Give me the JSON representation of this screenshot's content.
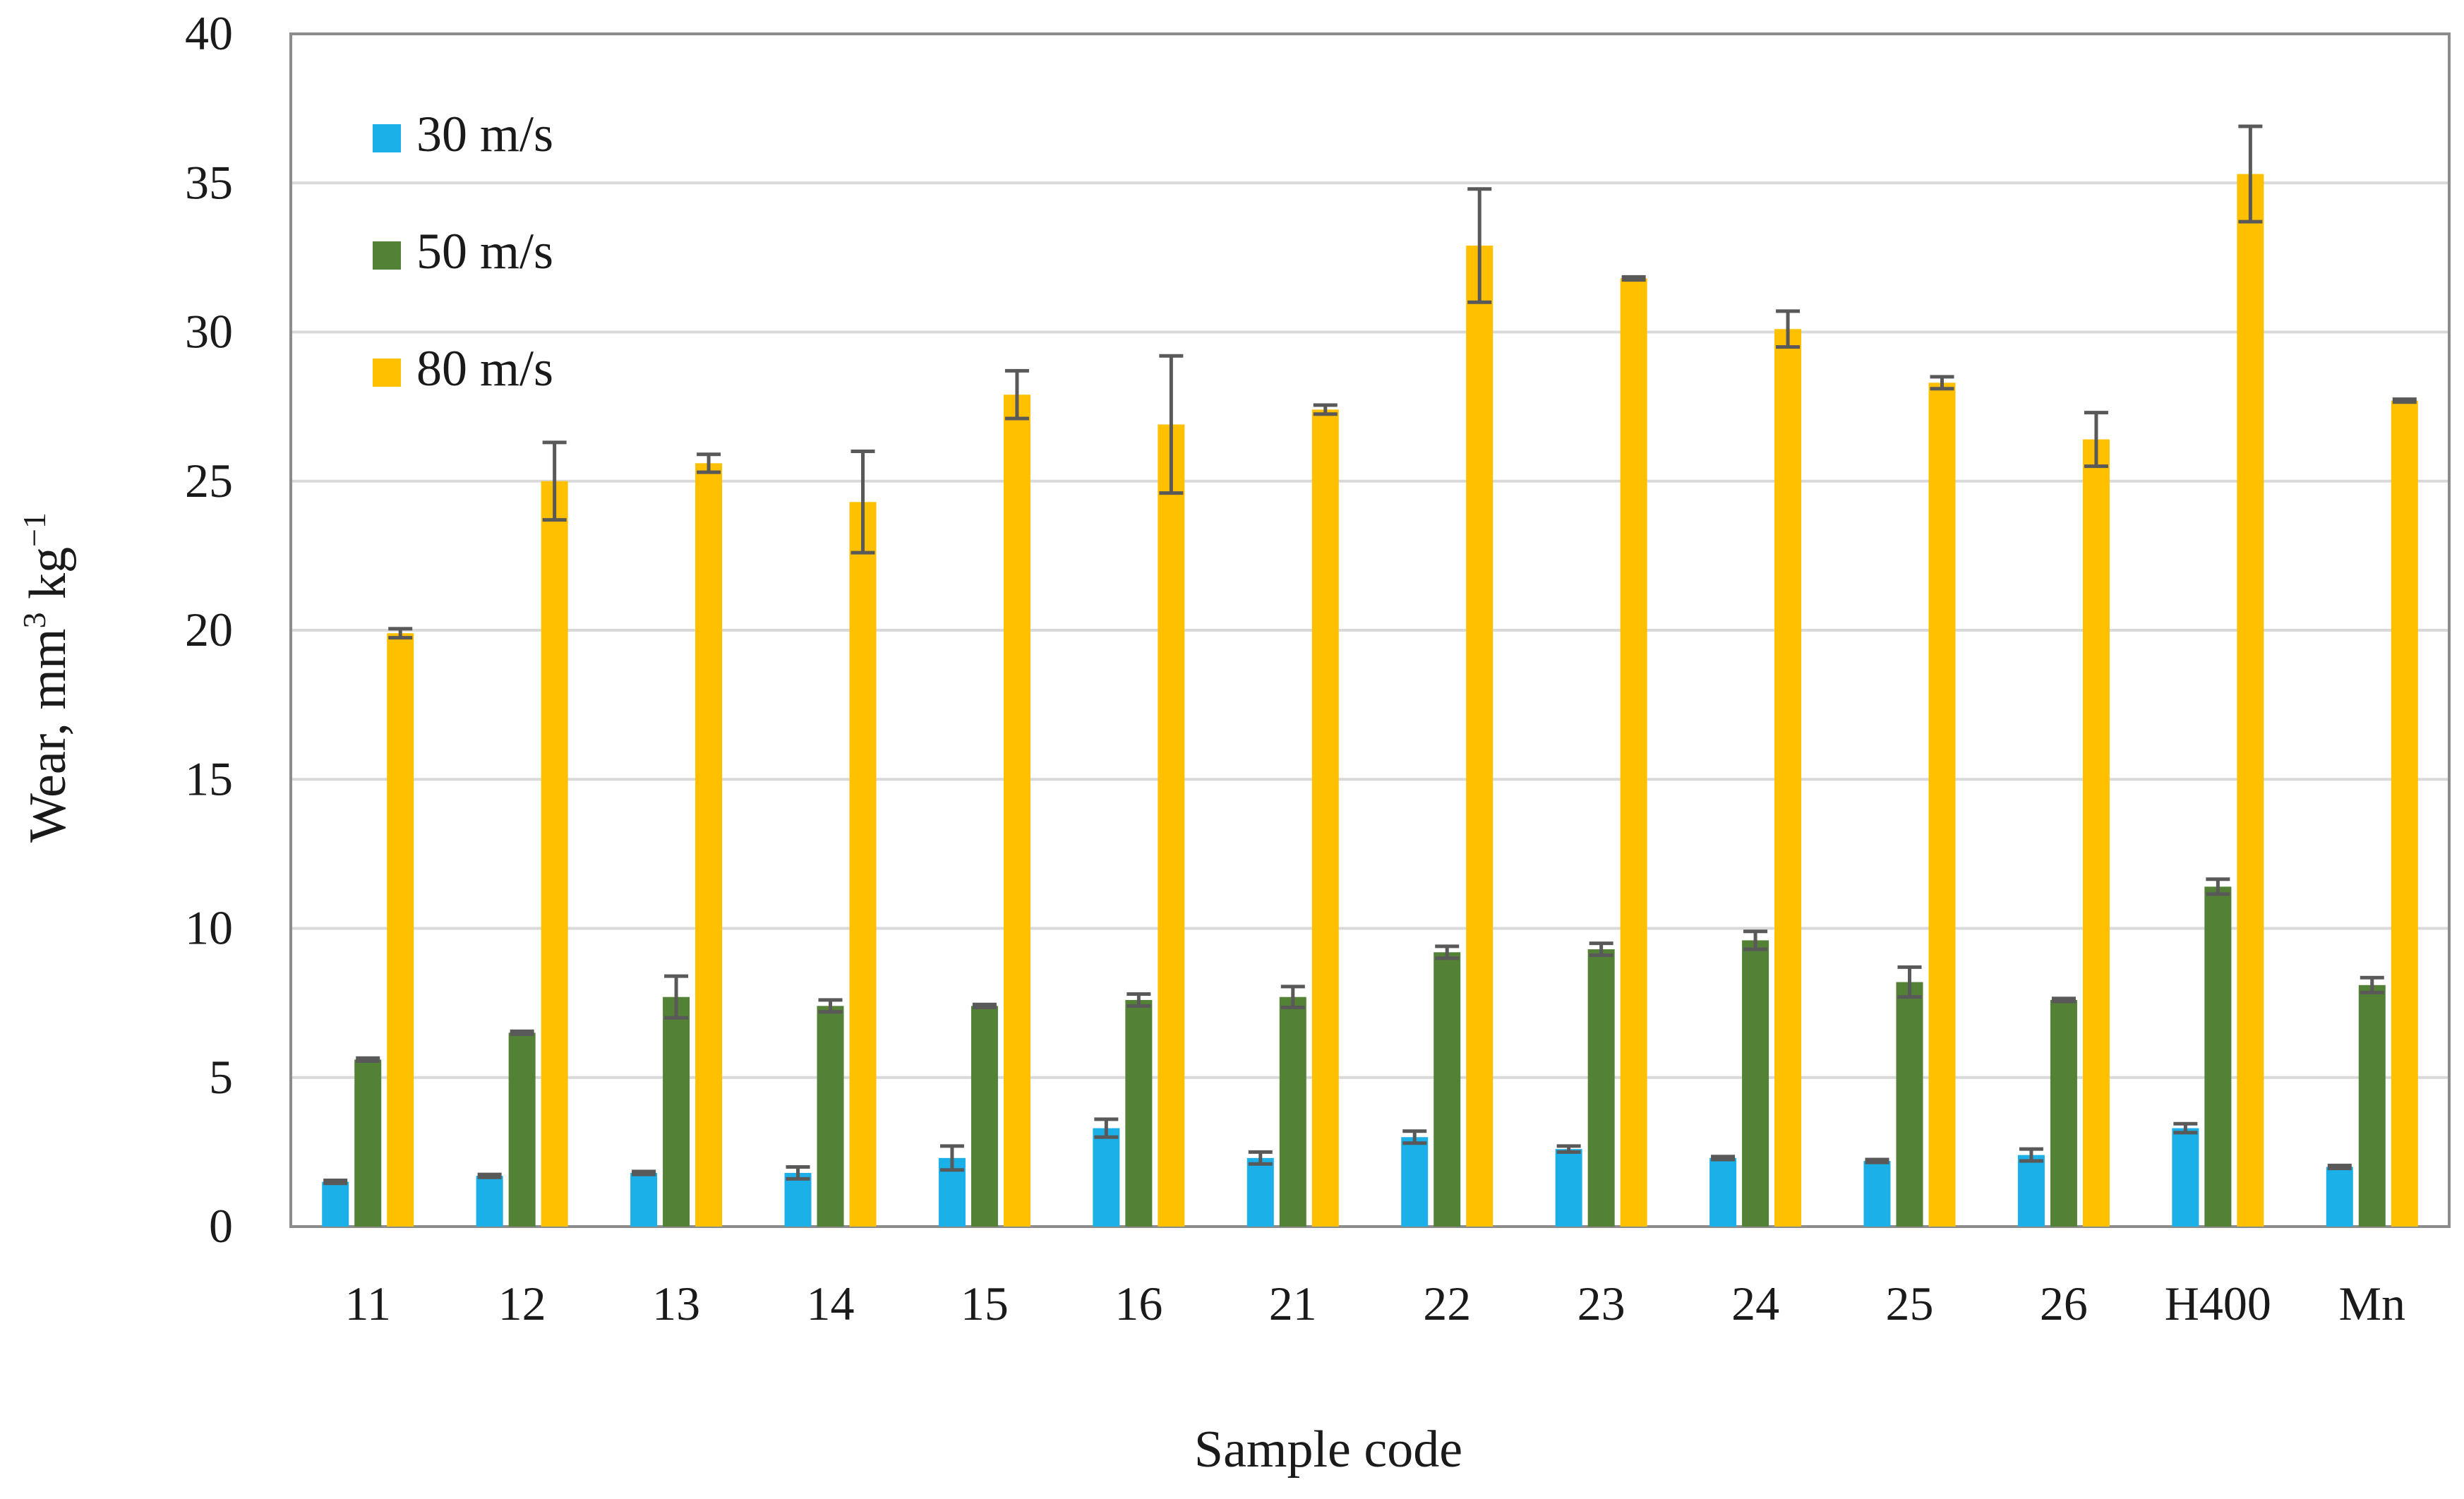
{
  "chart_data": {
    "type": "bar",
    "title": "",
    "xlabel": "Sample code",
    "ylabel_parts": [
      "Wear, mm",
      "3",
      " kg",
      "−1"
    ],
    "ylim": [
      0,
      40
    ],
    "yticks": [
      0,
      5,
      10,
      15,
      20,
      25,
      30,
      35,
      40
    ],
    "grid": true,
    "legend_position": "top-left",
    "categories": [
      "11",
      "12",
      "13",
      "14",
      "15",
      "16",
      "21",
      "22",
      "23",
      "24",
      "25",
      "26",
      "H400",
      "Mn"
    ],
    "series": [
      {
        "name": "30 m/s",
        "color": "#1cb0e8",
        "values": [
          1.5,
          1.7,
          1.8,
          1.8,
          2.3,
          3.3,
          2.3,
          3.0,
          2.6,
          2.3,
          2.2,
          2.4,
          3.3,
          2.0
        ],
        "errors": [
          0.05,
          0.05,
          0.05,
          0.2,
          0.4,
          0.3,
          0.2,
          0.2,
          0.1,
          0.05,
          0.05,
          0.2,
          0.15,
          0.05
        ]
      },
      {
        "name": "50 m/s",
        "color": "#538135",
        "values": [
          5.6,
          6.5,
          7.7,
          7.4,
          7.4,
          7.6,
          7.7,
          9.2,
          9.3,
          9.6,
          8.2,
          7.6,
          11.4,
          8.1
        ],
        "errors": [
          0.05,
          0.05,
          0.7,
          0.2,
          0.05,
          0.2,
          0.35,
          0.2,
          0.2,
          0.3,
          0.5,
          0.05,
          0.25,
          0.25
        ]
      },
      {
        "name": "80 m/s",
        "color": "#ffc000",
        "values": [
          19.9,
          25.0,
          25.6,
          24.3,
          27.9,
          26.9,
          27.4,
          32.9,
          31.8,
          30.1,
          28.3,
          26.4,
          35.3,
          27.7
        ],
        "errors": [
          0.15,
          1.3,
          0.3,
          1.7,
          0.8,
          2.3,
          0.15,
          1.9,
          0.05,
          0.6,
          0.2,
          0.9,
          1.6,
          0.05
        ]
      }
    ]
  }
}
